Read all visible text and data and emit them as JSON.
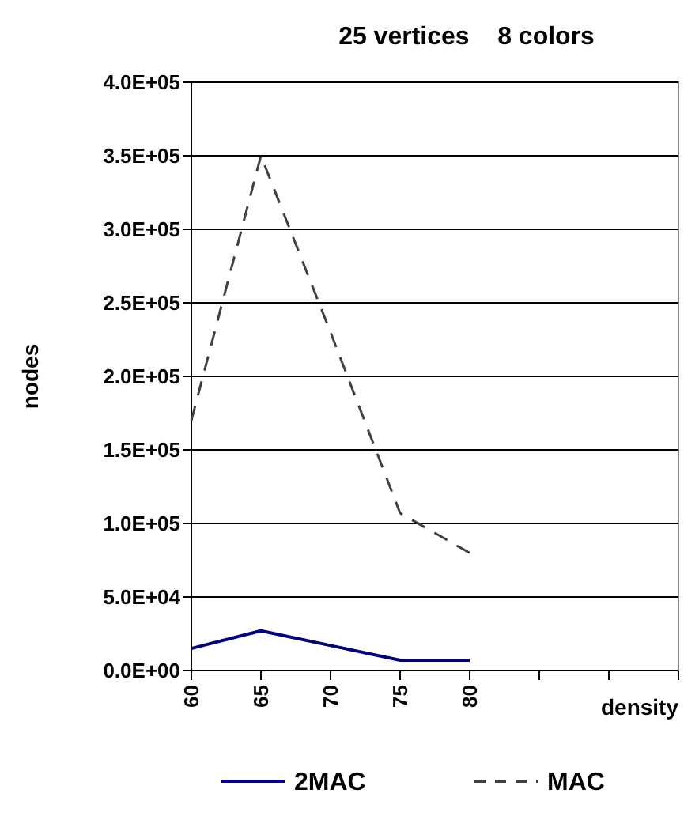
{
  "chart_data": {
    "type": "line",
    "title": "25 vertices    8 colors",
    "xlabel": "density",
    "ylabel": "nodes",
    "categories": [
      "60",
      "65",
      "70",
      "75",
      "80",
      null,
      null,
      null
    ],
    "series": [
      {
        "name": "2MAC",
        "color": "#000080",
        "line_style": "solid",
        "values": [
          15000,
          27000,
          17000,
          7000,
          7000,
          null,
          null,
          null
        ]
      },
      {
        "name": "MAC",
        "color": "#404040",
        "line_style": "dashed",
        "values": [
          170000,
          350000,
          230000,
          107000,
          80000,
          null,
          null,
          null
        ]
      }
    ],
    "ylim": [
      0,
      400000
    ],
    "yticks": [
      {
        "value": 0,
        "label": "0.0E+00"
      },
      {
        "value": 50000,
        "label": "5.0E+04"
      },
      {
        "value": 100000,
        "label": "1.0E+05"
      },
      {
        "value": 150000,
        "label": "1.5E+05"
      },
      {
        "value": 200000,
        "label": "2.0E+05"
      },
      {
        "value": 250000,
        "label": "2.5E+05"
      },
      {
        "value": 300000,
        "label": "3.0E+05"
      },
      {
        "value": 350000,
        "label": "3.5E+05"
      },
      {
        "value": 400000,
        "label": "4.0E+05"
      }
    ],
    "grid": "y",
    "legend": "bottom",
    "marker": "none"
  }
}
